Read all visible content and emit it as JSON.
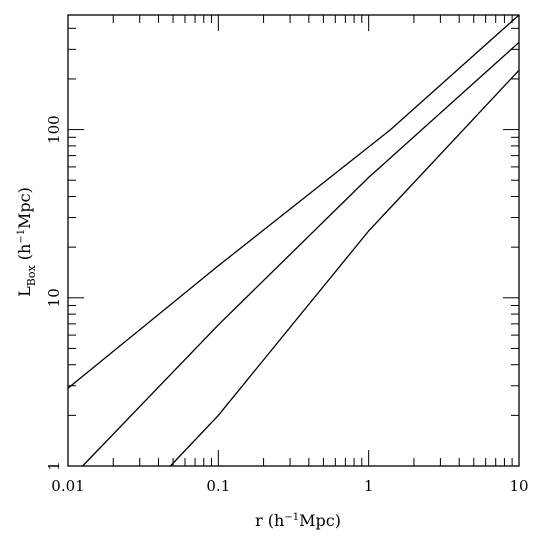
{
  "chart_data": {
    "type": "line",
    "title": "",
    "xlabel": {
      "main": "r",
      "unit_pre": " (h",
      "unit_sup": "−1",
      "unit_post": "Mpc)"
    },
    "ylabel": {
      "main": "L",
      "sub": "Box",
      "unit_pre": " (h",
      "unit_sup": "−1",
      "unit_post": "Mpc)"
    },
    "xscale": "log",
    "yscale": "log",
    "xlim": [
      0.01,
      10
    ],
    "ylim": [
      1,
      480
    ],
    "xticks": [
      {
        "value": 0.01,
        "label": "0.01"
      },
      {
        "value": 0.1,
        "label": "0.1"
      },
      {
        "value": 1,
        "label": "1"
      },
      {
        "value": 10,
        "label": "10"
      }
    ],
    "yticks": [
      {
        "value": 1,
        "label": "1"
      },
      {
        "value": 10,
        "label": "10"
      },
      {
        "value": 100,
        "label": "100"
      }
    ],
    "grid": false,
    "legend": "none",
    "series": [
      {
        "x": [
          0.01,
          0.1,
          1.4,
          10
        ],
        "y": [
          2.9,
          15.5,
          100,
          480
        ]
      },
      {
        "x": [
          0.0125,
          0.1,
          1,
          10
        ],
        "y": [
          1,
          6.9,
          52,
          330
        ]
      },
      {
        "x": [
          0.048,
          0.1,
          1,
          10
        ],
        "y": [
          1,
          2.0,
          25,
          225
        ]
      }
    ]
  }
}
